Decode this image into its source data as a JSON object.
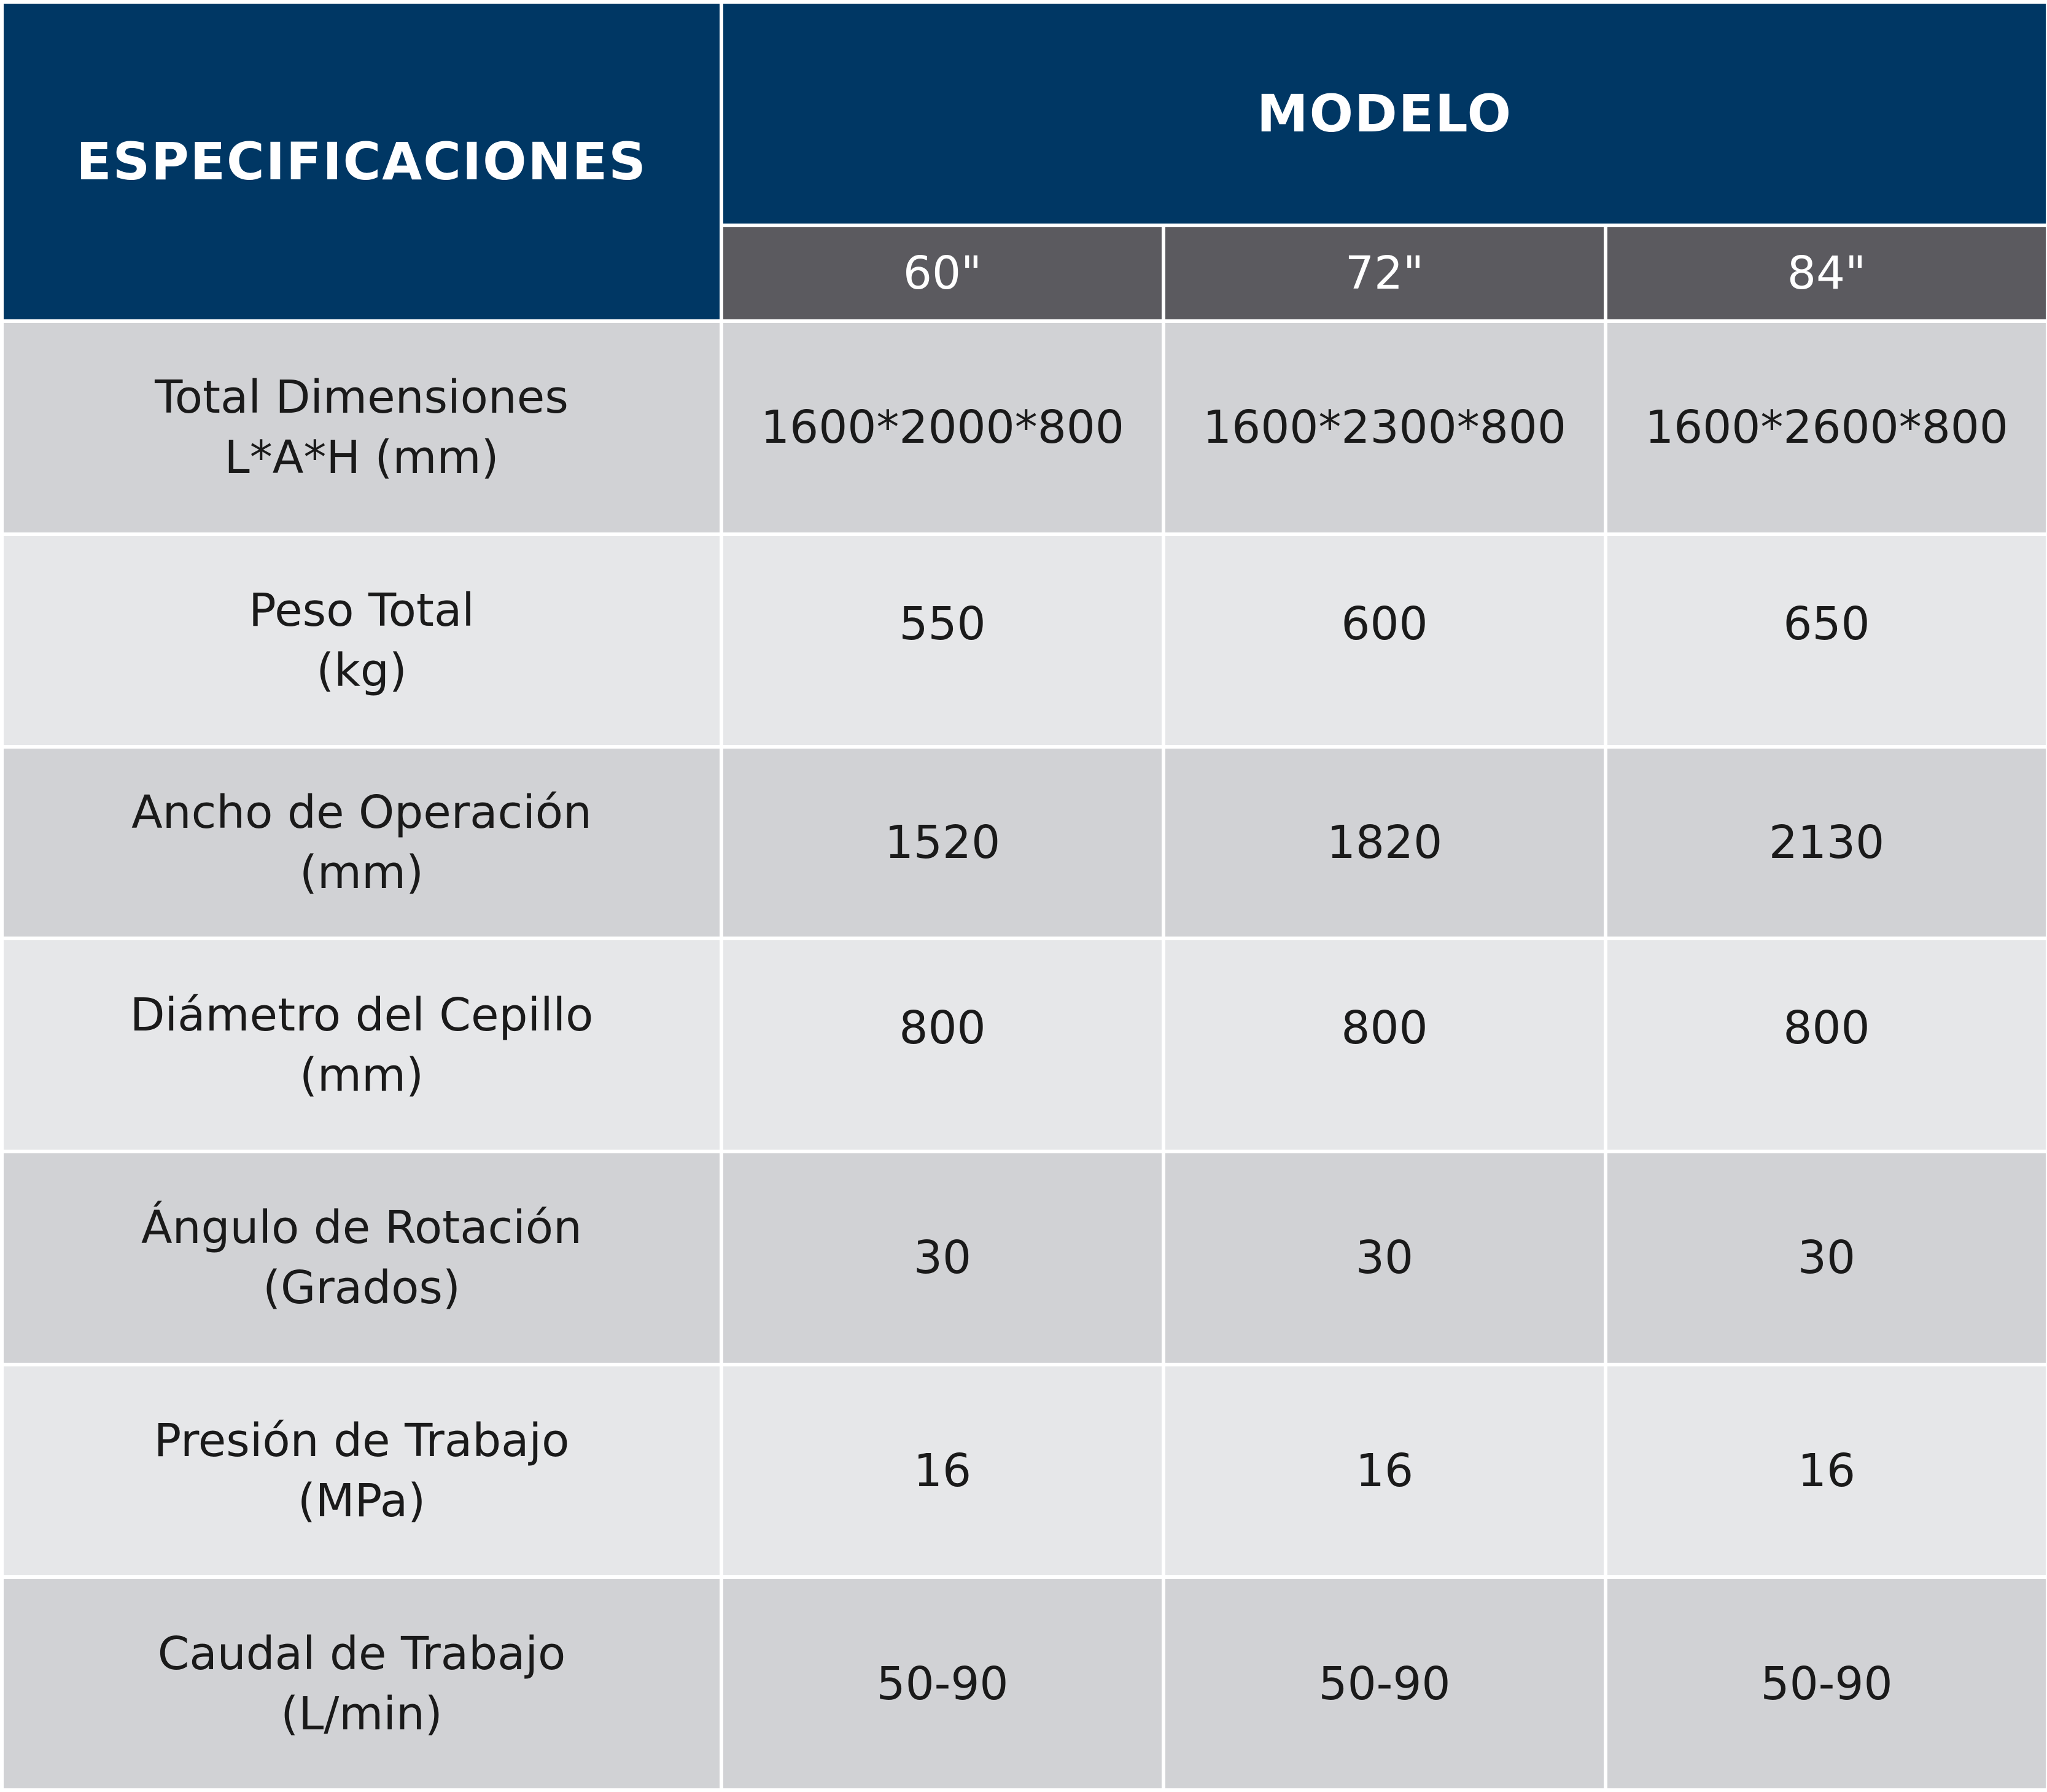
{
  "header": {
    "spec_label": "ESPECIFICACIONES",
    "model_label": "MODELO",
    "models": [
      "60\"",
      "72\"",
      "84\""
    ]
  },
  "rows": [
    {
      "label_line1": "Total Dimensiones",
      "label_line2": "L*A*H (mm)",
      "values": [
        "1600*2000*800",
        "1600*2300*800",
        "1600*2600*800"
      ]
    },
    {
      "label_line1": "Peso Total",
      "label_line2": "(kg)",
      "values": [
        "550",
        "600",
        "650"
      ]
    },
    {
      "label_line1": "Ancho de Operación",
      "label_line2": "(mm)",
      "values": [
        "1520",
        "1820",
        "2130"
      ]
    },
    {
      "label_line1": "Diámetro del Cepillo",
      "label_line2": "(mm)",
      "values": [
        "800",
        "800",
        "800"
      ]
    },
    {
      "label_line1": "Ángulo de Rotación",
      "label_line2": "(Grados)",
      "values": [
        "30",
        "30",
        "30"
      ]
    },
    {
      "label_line1": "Presión de Trabajo",
      "label_line2": "(MPa)",
      "values": [
        "16",
        "16",
        "16"
      ]
    },
    {
      "label_line1": "Caudal de Trabajo",
      "label_line2": "(L/min)",
      "values": [
        "50-90",
        "50-90",
        "50-90"
      ]
    }
  ],
  "colors": {
    "header_blue": "#003764",
    "header_gray": "#5b5a5f",
    "row_dark": "#d1d2d5",
    "row_light": "#e6e7e9",
    "text": "#1a1a1a"
  }
}
